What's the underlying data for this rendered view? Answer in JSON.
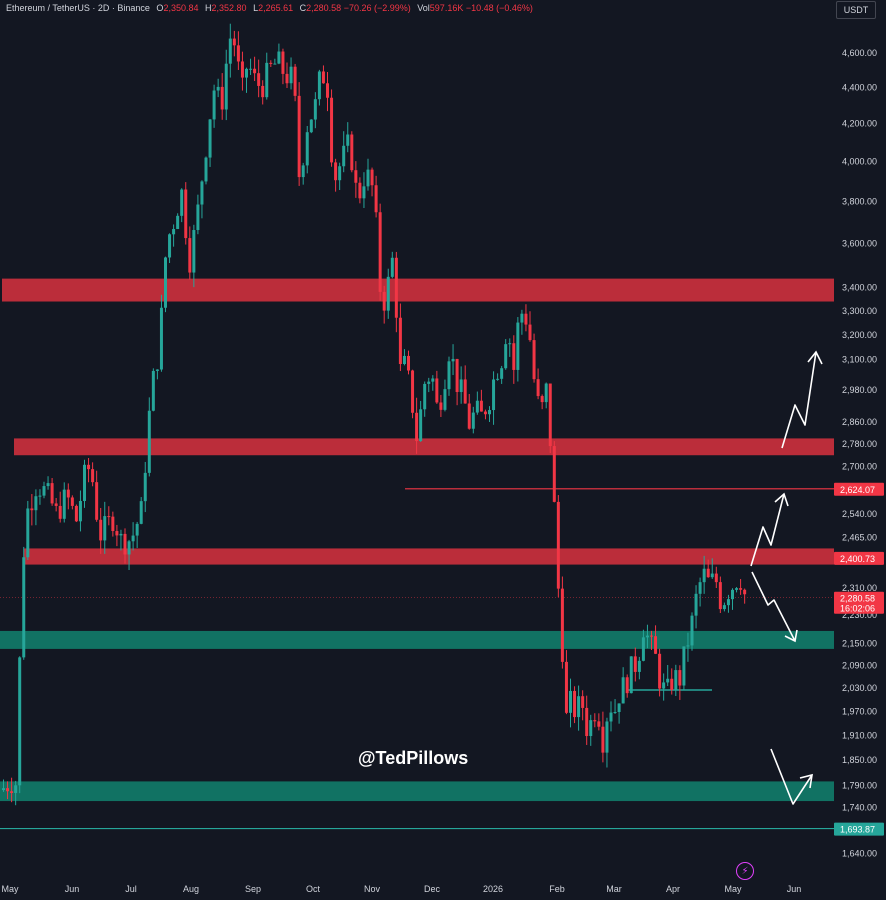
{
  "header": {
    "symbol": "Ethereum / TetherUS · 2D · Binance",
    "o_label": "O",
    "o_value": "2,350.84",
    "h_label": "H",
    "h_value": "2,352.80",
    "l_label": "L",
    "l_value": "2,265.61",
    "c_label": "C",
    "c_value": "2,280.58",
    "change": "−70.26 (−2.99%)",
    "vol_label": "Vol",
    "vol_value": "597.16K",
    "vol_change": "−10.48 (−0.46%)"
  },
  "unit_label": "USDT",
  "watermark": "@TedPillows",
  "colors": {
    "background": "#131722",
    "up": "#26a69a",
    "down": "#f23645",
    "resistance_zone": "#e0323f",
    "support_zone": "#12836f",
    "grid_text": "#d1d4dc"
  },
  "chart_data": {
    "type": "candlestick",
    "price_axis_ticks": [
      "4,600.00",
      "4,400.00",
      "4,200.00",
      "4,000.00",
      "3,800.00",
      "3,600.00",
      "3,400.00",
      "3,300.00",
      "3,200.00",
      "3,100.00",
      "2,980.00",
      "2,860.00",
      "2,780.00",
      "2,700.00",
      "2,540.00",
      "2,465.00",
      "2,310.00",
      "2,230.00",
      "2,150.00",
      "2,090.00",
      "2,030.00",
      "1,970.00",
      "1,910.00",
      "1,850.00",
      "1,790.00",
      "1,740.00",
      "1,640.00"
    ],
    "time_axis_ticks": [
      "May",
      "Jun",
      "Jul",
      "Aug",
      "Sep",
      "Oct",
      "Nov",
      "Dec",
      "2026",
      "Feb",
      "Mar",
      "Apr",
      "May",
      "Jun"
    ],
    "yscale": "log",
    "ylim": [
      1610,
      4800
    ],
    "price_tags": [
      {
        "label": "2,624.07",
        "kind": "red"
      },
      {
        "label": "2,400.73",
        "kind": "red"
      },
      {
        "label": "2,280.58",
        "sub": "16:02:06",
        "kind": "red"
      },
      {
        "label": "1,693.87",
        "kind": "green"
      }
    ],
    "zones": [
      {
        "kind": "resistance",
        "low": 3340,
        "high": 3440
      },
      {
        "kind": "resistance",
        "low": 2740,
        "high": 2800
      },
      {
        "kind": "resistance",
        "low": 2380,
        "high": 2430
      },
      {
        "kind": "support",
        "low": 2135,
        "high": 2185
      },
      {
        "kind": "support",
        "low": 1755,
        "high": 1800
      }
    ],
    "levels": [
      {
        "price": 2624.07,
        "kind": "red"
      },
      {
        "price": 1693.87,
        "kind": "green"
      }
    ],
    "last_price": 2280.58,
    "price_path": [
      [
        0,
        1780
      ],
      [
        4,
        1790
      ],
      [
        10,
        1800
      ],
      [
        16,
        1795
      ],
      [
        20,
        2350
      ],
      [
        26,
        2550
      ],
      [
        35,
        2640
      ],
      [
        45,
        2610
      ],
      [
        55,
        2540
      ],
      [
        65,
        2600
      ],
      [
        75,
        2520
      ],
      [
        85,
        2700
      ],
      [
        90,
        2680
      ],
      [
        98,
        2470
      ],
      [
        105,
        2500
      ],
      [
        112,
        2530
      ],
      [
        120,
        2450
      ],
      [
        130,
        2460
      ],
      [
        140,
        2550
      ],
      [
        150,
        2980
      ],
      [
        158,
        3150
      ],
      [
        165,
        3600
      ],
      [
        172,
        3700
      ],
      [
        180,
        3850
      ],
      [
        188,
        3520
      ],
      [
        195,
        3700
      ],
      [
        205,
        4100
      ],
      [
        212,
        4400
      ],
      [
        220,
        4300
      ],
      [
        228,
        4700
      ],
      [
        234,
        4650
      ],
      [
        240,
        4350
      ],
      [
        246,
        4550
      ],
      [
        252,
        4450
      ],
      [
        260,
        4400
      ],
      [
        268,
        4500
      ],
      [
        276,
        4550
      ],
      [
        284,
        4470
      ],
      [
        292,
        4450
      ],
      [
        298,
        3900
      ],
      [
        306,
        4200
      ],
      [
        314,
        4300
      ],
      [
        320,
        4500
      ],
      [
        326,
        4400
      ],
      [
        332,
        3900
      ],
      [
        340,
        4000
      ],
      [
        348,
        4100
      ],
      [
        356,
        3800
      ],
      [
        364,
        3950
      ],
      [
        372,
        3850
      ],
      [
        376,
        3600
      ],
      [
        380,
        3300
      ],
      [
        386,
        3400
      ],
      [
        392,
        3550
      ],
      [
        398,
        3050
      ],
      [
        404,
        3080
      ],
      [
        410,
        2950
      ],
      [
        416,
        2780
      ],
      [
        422,
        3000
      ],
      [
        430,
        3050
      ],
      [
        436,
        2900
      ],
      [
        442,
        3000
      ],
      [
        448,
        3150
      ],
      [
        456,
        3000
      ],
      [
        462,
        2950
      ],
      [
        468,
        2850
      ],
      [
        474,
        2900
      ],
      [
        480,
        2880
      ],
      [
        488,
        2950
      ],
      [
        494,
        3050
      ],
      [
        500,
        3100
      ],
      [
        506,
        3250
      ],
      [
        512,
        3050
      ],
      [
        518,
        3300
      ],
      [
        524,
        3280
      ],
      [
        530,
        3150
      ],
      [
        534,
        2950
      ],
      [
        540,
        2900
      ],
      [
        546,
        3000
      ],
      [
        550,
        2700
      ],
      [
        554,
        2500
      ],
      [
        558,
        2230
      ],
      [
        562,
        2100
      ],
      [
        566,
        1900
      ],
      [
        570,
        2020
      ],
      [
        574,
        1960
      ],
      [
        580,
        2000
      ],
      [
        586,
        1920
      ],
      [
        592,
        1960
      ],
      [
        596,
        2000
      ],
      [
        600,
        1880
      ],
      [
        604,
        1940
      ],
      [
        608,
        2000
      ],
      [
        612,
        1960
      ],
      [
        618,
        2020
      ],
      [
        624,
        2040
      ],
      [
        630,
        2080
      ],
      [
        636,
        2100
      ],
      [
        642,
        2200
      ],
      [
        648,
        2150
      ],
      [
        654,
        2110
      ],
      [
        660,
        2030
      ],
      [
        666,
        2020
      ],
      [
        672,
        2060
      ],
      [
        678,
        2050
      ],
      [
        684,
        2130
      ],
      [
        690,
        2200
      ],
      [
        696,
        2300
      ],
      [
        702,
        2350
      ],
      [
        708,
        2320
      ],
      [
        714,
        2340
      ],
      [
        720,
        2260
      ],
      [
        726,
        2300
      ],
      [
        732,
        2320
      ],
      [
        738,
        2350
      ],
      [
        744,
        2280
      ]
    ],
    "scenario_arrows": [
      {
        "direction": "up",
        "target": 3120
      },
      {
        "direction": "up",
        "target": 2610
      },
      {
        "direction": "down",
        "target": 2170
      },
      {
        "direction": "up",
        "target": 1840
      }
    ]
  }
}
